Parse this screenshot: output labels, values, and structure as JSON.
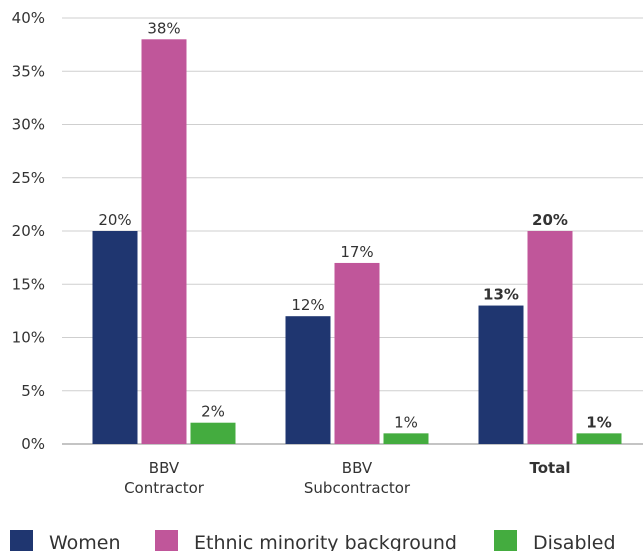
{
  "chart_data": {
    "type": "bar",
    "title": "",
    "xlabel": "",
    "ylabel": "",
    "ylim": [
      0,
      40
    ],
    "yticks": [
      0,
      5,
      10,
      15,
      20,
      25,
      30,
      35,
      40
    ],
    "ytick_suffix": "%",
    "grid": true,
    "legend_position": "bottom",
    "categories": [
      {
        "lines": [
          "BBV",
          "Contractor"
        ],
        "bold": false
      },
      {
        "lines": [
          "BBV",
          "Subcontractor"
        ],
        "bold": false
      },
      {
        "lines": [
          "Total"
        ],
        "bold": true
      }
    ],
    "series": [
      {
        "name": "Women",
        "color": "#1f3670",
        "values": [
          20,
          12,
          13
        ],
        "labels": [
          "20%",
          "12%",
          "13%"
        ]
      },
      {
        "name": "Ethnic minority background",
        "color": "#c0569a",
        "values": [
          38,
          17,
          20
        ],
        "labels": [
          "38%",
          "17%",
          "20%"
        ]
      },
      {
        "name": "Disabled",
        "color": "#44ac3f",
        "values": [
          2,
          1,
          1
        ],
        "labels": [
          "2%",
          "1%",
          "1%"
        ]
      }
    ]
  }
}
